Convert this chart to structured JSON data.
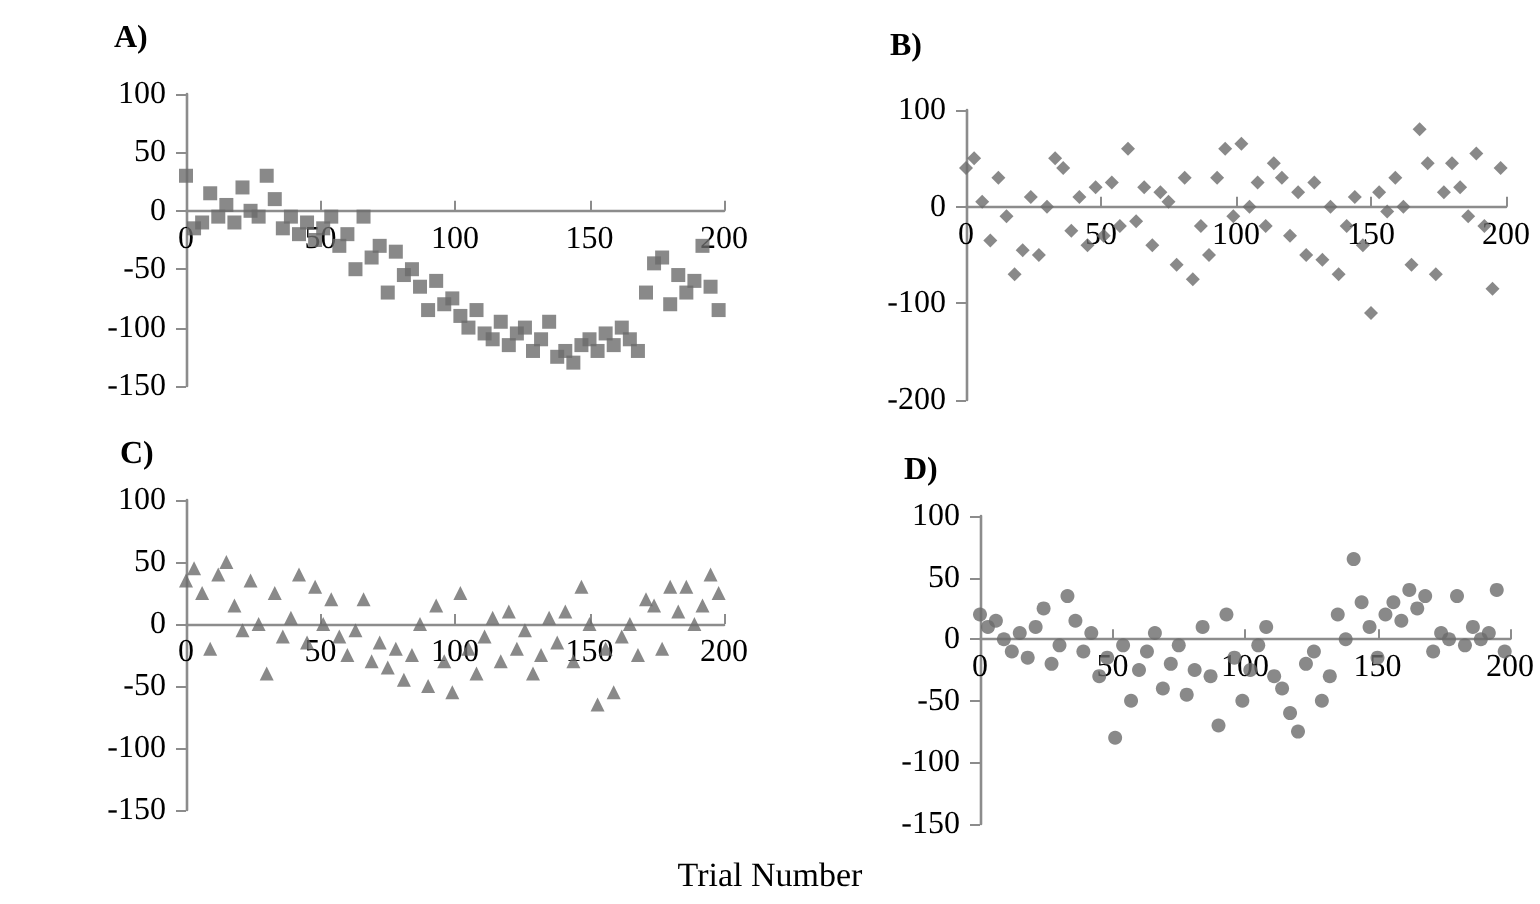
{
  "chart_data": [
    {
      "type": "scatter",
      "title": "A)",
      "marker": "square",
      "xlim": [
        0,
        200
      ],
      "xticks": [
        0,
        50,
        100,
        150,
        200
      ],
      "ylim": [
        -150,
        100
      ],
      "yticks": [
        -150,
        -100,
        -50,
        0,
        50,
        100
      ],
      "x": [
        0,
        3,
        6,
        9,
        12,
        15,
        18,
        21,
        24,
        27,
        30,
        33,
        36,
        39,
        42,
        45,
        48,
        51,
        54,
        57,
        60,
        63,
        66,
        69,
        72,
        75,
        78,
        81,
        84,
        87,
        90,
        93,
        96,
        99,
        102,
        105,
        108,
        111,
        114,
        117,
        120,
        123,
        126,
        129,
        132,
        135,
        138,
        141,
        144,
        147,
        150,
        153,
        156,
        159,
        162,
        165,
        168,
        171,
        174,
        177,
        180,
        183,
        186,
        189,
        192,
        195,
        198
      ],
      "series": [
        {
          "color": "#6b6b6b",
          "values": [
            30,
            -15,
            -10,
            15,
            -5,
            5,
            -10,
            20,
            0,
            -5,
            30,
            10,
            -15,
            -5,
            -20,
            -10,
            -25,
            -15,
            -5,
            -30,
            -20,
            -50,
            -5,
            -40,
            -30,
            -70,
            -35,
            -55,
            -50,
            -65,
            -85,
            -60,
            -80,
            -75,
            -90,
            -100,
            -85,
            -105,
            -110,
            -95,
            -115,
            -105,
            -100,
            -120,
            -110,
            -95,
            -125,
            -120,
            -130,
            -115,
            -110,
            -120,
            -105,
            -115,
            -100,
            -110,
            -120,
            -70,
            -45,
            -40,
            -80,
            -55,
            -70,
            -60,
            -30,
            -65,
            -85
          ]
        }
      ]
    },
    {
      "type": "scatter",
      "title": "B)",
      "marker": "diamond",
      "xlim": [
        0,
        200
      ],
      "xticks": [
        0,
        50,
        100,
        150,
        200
      ],
      "ylim": [
        -200,
        100
      ],
      "yticks": [
        -200,
        -100,
        0,
        100
      ],
      "x": [
        0,
        3,
        6,
        9,
        12,
        15,
        18,
        21,
        24,
        27,
        30,
        33,
        36,
        39,
        42,
        45,
        48,
        51,
        54,
        57,
        60,
        63,
        66,
        69,
        72,
        75,
        78,
        81,
        84,
        87,
        90,
        93,
        96,
        99,
        102,
        105,
        108,
        111,
        114,
        117,
        120,
        123,
        126,
        129,
        132,
        135,
        138,
        141,
        144,
        147,
        150,
        153,
        156,
        159,
        162,
        165,
        168,
        171,
        174,
        177,
        180,
        183,
        186,
        189,
        192,
        195,
        198
      ],
      "series": [
        {
          "color": "#6b6b6b",
          "values": [
            40,
            50,
            5,
            -35,
            30,
            -10,
            -70,
            -45,
            10,
            -50,
            0,
            50,
            40,
            -25,
            10,
            -40,
            20,
            -30,
            25,
            -20,
            60,
            -15,
            20,
            -40,
            15,
            5,
            -60,
            30,
            -75,
            -20,
            -50,
            30,
            60,
            -10,
            65,
            0,
            25,
            -20,
            45,
            30,
            -30,
            15,
            -50,
            25,
            -55,
            0,
            -70,
            -20,
            10,
            -40,
            -110,
            15,
            -5,
            30,
            0,
            -60,
            80,
            45,
            -70,
            15,
            45,
            20,
            -10,
            55,
            -20,
            -85,
            40
          ]
        }
      ]
    },
    {
      "type": "scatter",
      "title": "C)",
      "marker": "triangle",
      "xlim": [
        0,
        200
      ],
      "xticks": [
        0,
        50,
        100,
        150,
        200
      ],
      "ylim": [
        -150,
        100
      ],
      "yticks": [
        -150,
        -100,
        -50,
        0,
        50,
        100
      ],
      "annotations": [
        "Trial Number"
      ],
      "x": [
        0,
        3,
        6,
        9,
        12,
        15,
        18,
        21,
        24,
        27,
        30,
        33,
        36,
        39,
        42,
        45,
        48,
        51,
        54,
        57,
        60,
        63,
        66,
        69,
        72,
        75,
        78,
        81,
        84,
        87,
        90,
        93,
        96,
        99,
        102,
        105,
        108,
        111,
        114,
        117,
        120,
        123,
        126,
        129,
        132,
        135,
        138,
        141,
        144,
        147,
        150,
        153,
        156,
        159,
        162,
        165,
        168,
        171,
        174,
        177,
        180,
        183,
        186,
        189,
        192,
        195,
        198
      ],
      "series": [
        {
          "color": "#6b6b6b",
          "values": [
            35,
            45,
            25,
            -20,
            40,
            50,
            15,
            -5,
            35,
            0,
            -40,
            25,
            -10,
            5,
            40,
            -15,
            30,
            0,
            20,
            -10,
            -25,
            -5,
            20,
            -30,
            -15,
            -35,
            -20,
            -45,
            -25,
            0,
            -50,
            15,
            -30,
            -55,
            25,
            -20,
            -40,
            -10,
            5,
            -30,
            10,
            -20,
            -5,
            -40,
            -25,
            5,
            -15,
            10,
            -30,
            30,
            0,
            -65,
            -20,
            -55,
            -10,
            0,
            -25,
            20,
            15,
            -20,
            30,
            10,
            30,
            0,
            15,
            40,
            25
          ]
        }
      ]
    },
    {
      "type": "scatter",
      "title": "D)",
      "marker": "circle",
      "xlim": [
        0,
        200
      ],
      "xticks": [
        0,
        50,
        100,
        150,
        200
      ],
      "ylim": [
        -150,
        100
      ],
      "yticks": [
        -150,
        -100,
        -50,
        0,
        50,
        100
      ],
      "x": [
        0,
        3,
        6,
        9,
        12,
        15,
        18,
        21,
        24,
        27,
        30,
        33,
        36,
        39,
        42,
        45,
        48,
        51,
        54,
        57,
        60,
        63,
        66,
        69,
        72,
        75,
        78,
        81,
        84,
        87,
        90,
        93,
        96,
        99,
        102,
        105,
        108,
        111,
        114,
        117,
        120,
        123,
        126,
        129,
        132,
        135,
        138,
        141,
        144,
        147,
        150,
        153,
        156,
        159,
        162,
        165,
        168,
        171,
        174,
        177,
        180,
        183,
        186,
        189,
        192,
        195,
        198
      ],
      "series": [
        {
          "color": "#6b6b6b",
          "values": [
            20,
            10,
            15,
            0,
            -10,
            5,
            -15,
            10,
            25,
            -20,
            -5,
            35,
            15,
            -10,
            5,
            -30,
            -15,
            -80,
            -5,
            -50,
            -25,
            -10,
            5,
            -40,
            -20,
            -5,
            -45,
            -25,
            10,
            -30,
            -70,
            20,
            -15,
            -50,
            -25,
            -5,
            10,
            -30,
            -40,
            -60,
            -75,
            -20,
            -10,
            -50,
            -30,
            20,
            0,
            65,
            30,
            10,
            -15,
            20,
            30,
            15,
            40,
            25,
            35,
            -10,
            5,
            0,
            35,
            -5,
            10,
            0,
            5,
            40,
            -10
          ]
        }
      ]
    }
  ]
}
